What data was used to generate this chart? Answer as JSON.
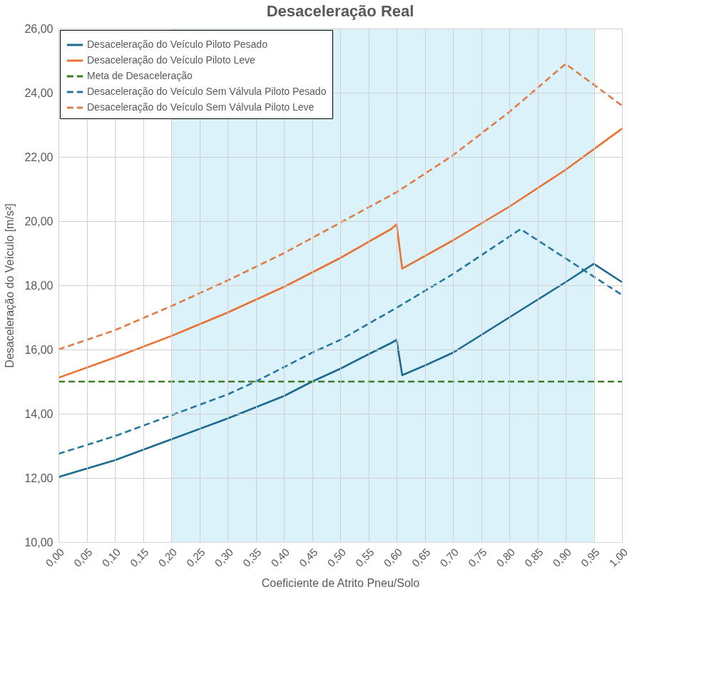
{
  "chart_data": {
    "type": "line",
    "title": "Desaceleração Real",
    "xlabel": "Coeficiente de Atrito Pneu/Solo",
    "ylabel": "Desaceleração do Veículo [m/s²]",
    "xlim": [
      0,
      1
    ],
    "ylim": [
      10,
      26
    ],
    "xticks": [
      {
        "value": 0,
        "label": "0,00"
      },
      {
        "value": 0.05,
        "label": "0,05"
      },
      {
        "value": 0.1,
        "label": "0,10"
      },
      {
        "value": 0.15,
        "label": "0,15"
      },
      {
        "value": 0.2,
        "label": "0,20"
      },
      {
        "value": 0.25,
        "label": "0,25"
      },
      {
        "value": 0.3,
        "label": "0,30"
      },
      {
        "value": 0.35,
        "label": "0,35"
      },
      {
        "value": 0.4,
        "label": "0,40"
      },
      {
        "value": 0.45,
        "label": "0,45"
      },
      {
        "value": 0.5,
        "label": "0,50"
      },
      {
        "value": 0.55,
        "label": "0,55"
      },
      {
        "value": 0.6,
        "label": "0,60"
      },
      {
        "value": 0.65,
        "label": "0,65"
      },
      {
        "value": 0.7,
        "label": "0,70"
      },
      {
        "value": 0.75,
        "label": "0,75"
      },
      {
        "value": 0.8,
        "label": "0,80"
      },
      {
        "value": 0.85,
        "label": "0,85"
      },
      {
        "value": 0.9,
        "label": "0,90"
      },
      {
        "value": 0.95,
        "label": "0,95"
      },
      {
        "value": 1,
        "label": "1,00"
      }
    ],
    "yticks": [
      {
        "value": 10,
        "label": "10,00"
      },
      {
        "value": 12,
        "label": "12,00"
      },
      {
        "value": 14,
        "label": "14,00"
      },
      {
        "value": 16,
        "label": "16,00"
      },
      {
        "value": 18,
        "label": "18,00"
      },
      {
        "value": 20,
        "label": "20,00"
      },
      {
        "value": 22,
        "label": "22,00"
      },
      {
        "value": 24,
        "label": "24,00"
      },
      {
        "value": 26,
        "label": "26,00"
      }
    ],
    "grid": true,
    "legend": "top left",
    "marker": "none",
    "bands": [
      {
        "axis": "x",
        "from": 0.2,
        "to": 0.95,
        "color": "#dcf2fb"
      }
    ],
    "series": [
      {
        "name": "Desaceleração do Veículo Piloto Pesado",
        "color": "#1b6a8f",
        "line_style": "solid",
        "x": [
          0,
          0.1,
          0.2,
          0.3,
          0.4,
          0.45,
          0.5,
          0.55,
          0.59,
          0.6,
          0.61,
          0.65,
          0.7,
          0.75,
          0.8,
          0.85,
          0.9,
          0.95,
          1
        ],
        "values": [
          12.03,
          12.55,
          13.2,
          13.85,
          14.55,
          15.0,
          15.4,
          15.85,
          16.2,
          16.3,
          15.2,
          15.5,
          15.9,
          16.45,
          17.0,
          17.55,
          18.1,
          18.67,
          18.1
        ]
      },
      {
        "name": "Desaceleração do Veículo Piloto Leve",
        "color": "#e97132",
        "line_style": "solid",
        "x": [
          0,
          0.1,
          0.2,
          0.3,
          0.4,
          0.5,
          0.59,
          0.6,
          0.61,
          0.7,
          0.8,
          0.9,
          1
        ],
        "values": [
          15.12,
          15.75,
          16.42,
          17.15,
          17.95,
          18.85,
          19.75,
          19.9,
          18.52,
          19.4,
          20.45,
          21.6,
          22.88
        ]
      },
      {
        "name": "Meta de Desaceleração",
        "color": "#3a7d22",
        "line_style": "dashed",
        "x": [
          0,
          1
        ],
        "values": [
          15,
          15
        ]
      },
      {
        "name": "Desaceleração do Veículo Sem Válvula Piloto Pesado",
        "color": "#2778a0",
        "line_style": "dashed",
        "x": [
          0,
          0.1,
          0.2,
          0.3,
          0.35,
          0.45,
          0.5,
          0.6,
          0.7,
          0.82,
          1
        ],
        "values": [
          12.75,
          13.3,
          13.95,
          14.6,
          15.0,
          15.9,
          16.3,
          17.3,
          18.35,
          19.75,
          17.7
        ]
      },
      {
        "name": "Desaceleração do Veículo Sem Válvula Piloto Leve",
        "color": "#e07b45",
        "line_style": "dashed",
        "x": [
          0,
          0.1,
          0.2,
          0.3,
          0.4,
          0.5,
          0.6,
          0.7,
          0.8,
          0.9,
          1
        ],
        "values": [
          16.0,
          16.6,
          17.35,
          18.15,
          19.0,
          19.95,
          20.9,
          22.05,
          23.4,
          24.9,
          23.6
        ]
      }
    ]
  }
}
